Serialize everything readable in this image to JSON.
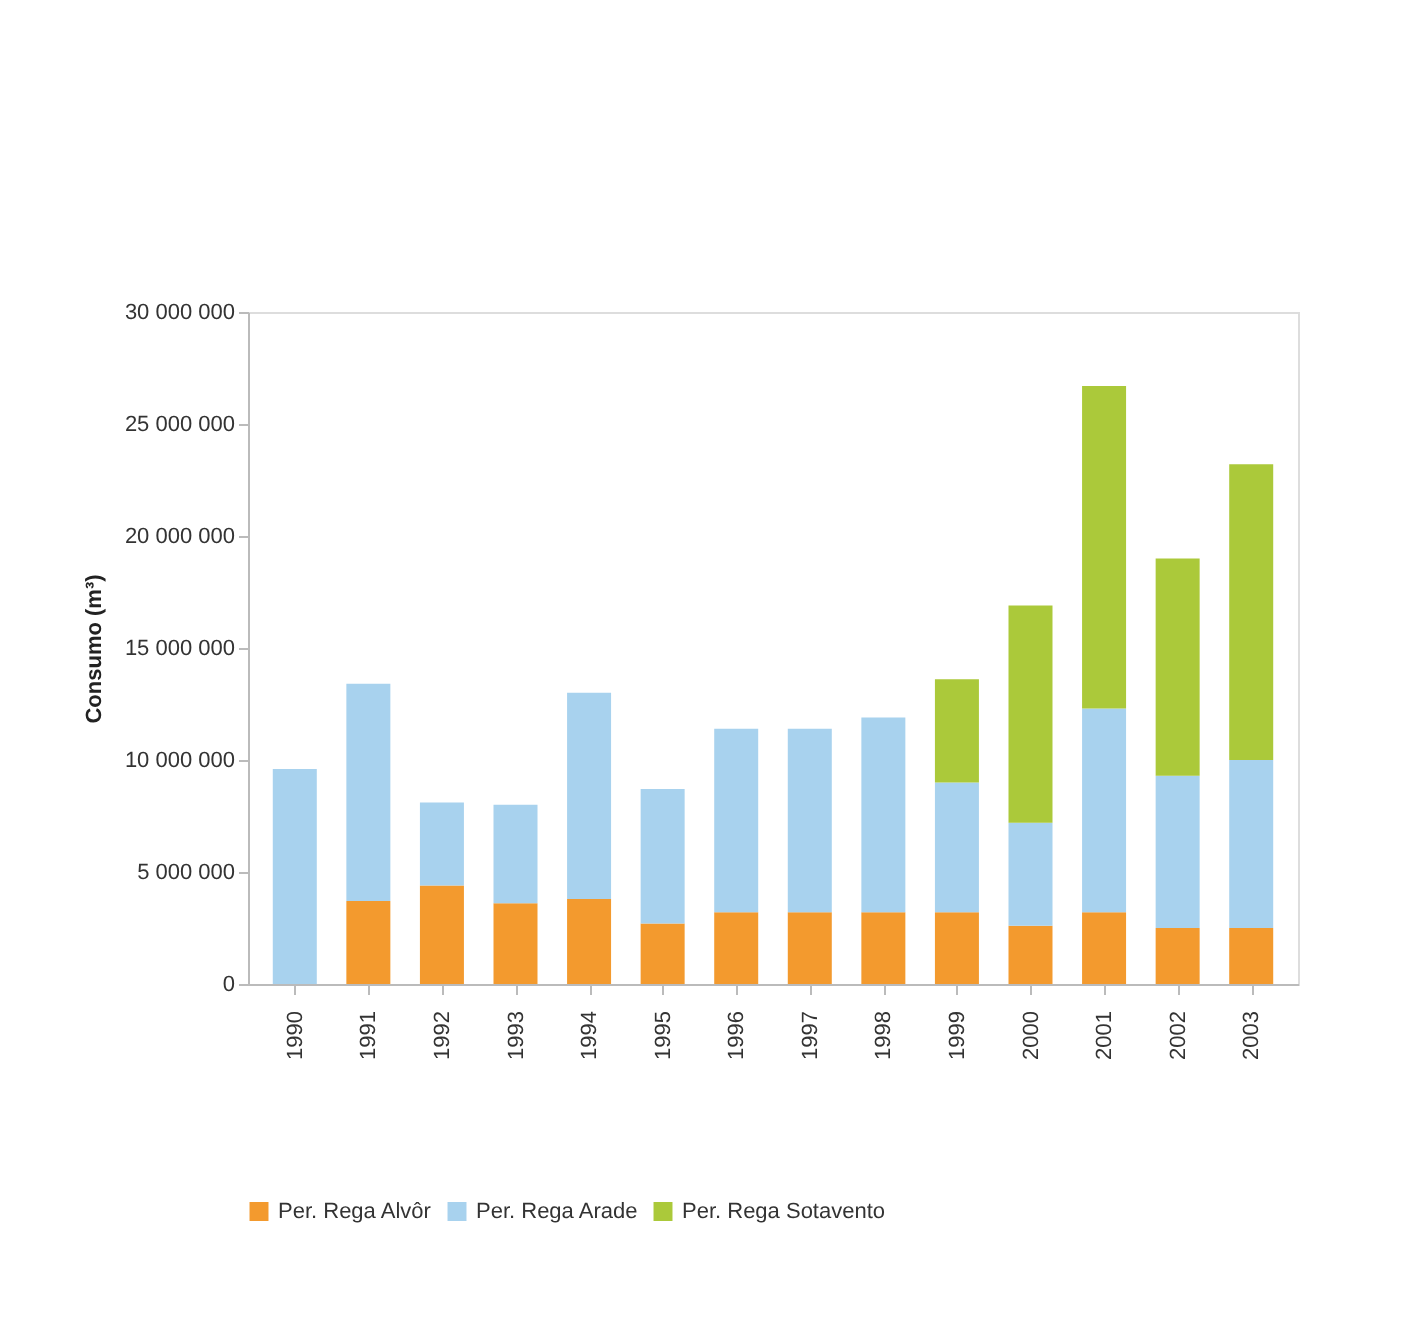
{
  "chart_data": {
    "type": "bar",
    "stacked": true,
    "ylabel": "Consumo (m³)",
    "categories": [
      "1990",
      "1991",
      "1992",
      "1993",
      "1994",
      "1995",
      "1996",
      "1997",
      "1998",
      "1999",
      "2000",
      "2001",
      "2002",
      "2003"
    ],
    "series": [
      {
        "name": "Per. Rega Alvôr",
        "color": "#f39a2e",
        "values": [
          null,
          3700000,
          4400000,
          3600000,
          3800000,
          2700000,
          3200000,
          3200000,
          3200000,
          3200000,
          2600000,
          3200000,
          2500000,
          2500000
        ]
      },
      {
        "name": "Per. Rega Arade",
        "color": "#a8d2ee",
        "values": [
          9600000,
          9700000,
          3700000,
          4400000,
          9200000,
          6000000,
          8200000,
          8200000,
          8700000,
          5800000,
          4600000,
          9100000,
          6800000,
          7500000
        ]
      },
      {
        "name": "Per. Rega Sotavento",
        "color": "#abc93a",
        "values": [
          null,
          null,
          null,
          null,
          null,
          null,
          null,
          null,
          null,
          4600000,
          9700000,
          14400000,
          9700000,
          13200000
        ]
      }
    ],
    "ylim": [
      0,
      30000000
    ],
    "yticks": [
      {
        "value": 0,
        "label": "0"
      },
      {
        "value": 5000000,
        "label": "5 000 000"
      },
      {
        "value": 10000000,
        "label": "10 000 000"
      },
      {
        "value": 15000000,
        "label": "15 000 000"
      },
      {
        "value": 20000000,
        "label": "20 000 000"
      },
      {
        "value": 25000000,
        "label": "25 000 000"
      },
      {
        "value": 30000000,
        "label": "30 000 000"
      }
    ],
    "grid": false,
    "legend": "bottom"
  }
}
